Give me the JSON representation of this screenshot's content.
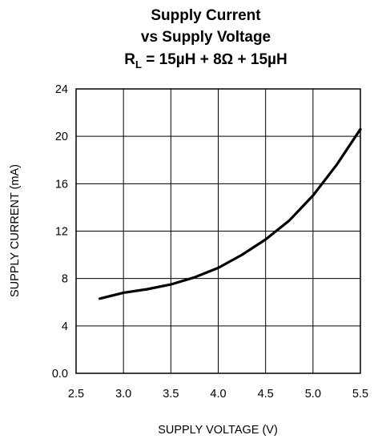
{
  "chart_data": {
    "type": "line",
    "title_lines": [
      "Supply Current",
      "vs Supply Voltage"
    ],
    "title_rl": {
      "prefix": "R",
      "subscript": "L",
      "rest": " = 15µH + 8Ω + 15µH"
    },
    "xlabel": "SUPPLY VOLTAGE (V)",
    "ylabel": "SUPPLY CURRENT (mA)",
    "xlim": [
      2.5,
      5.5
    ],
    "ylim": [
      0,
      24
    ],
    "x_ticks": [
      "2.5",
      "3.0",
      "3.5",
      "4.0",
      "4.5",
      "5.0",
      "5.5"
    ],
    "y_ticks": [
      "0.0",
      "4",
      "8",
      "12",
      "16",
      "20",
      "24"
    ],
    "grid": true,
    "series": [
      {
        "x": [
          2.75,
          3.0,
          3.25,
          3.5,
          3.75,
          4.0,
          4.25,
          4.5,
          4.75,
          5.0,
          5.25,
          5.5
        ],
        "y": [
          6.3,
          6.8,
          7.1,
          7.5,
          8.1,
          8.9,
          10.0,
          11.3,
          12.9,
          15.0,
          17.6,
          20.6
        ]
      }
    ]
  }
}
